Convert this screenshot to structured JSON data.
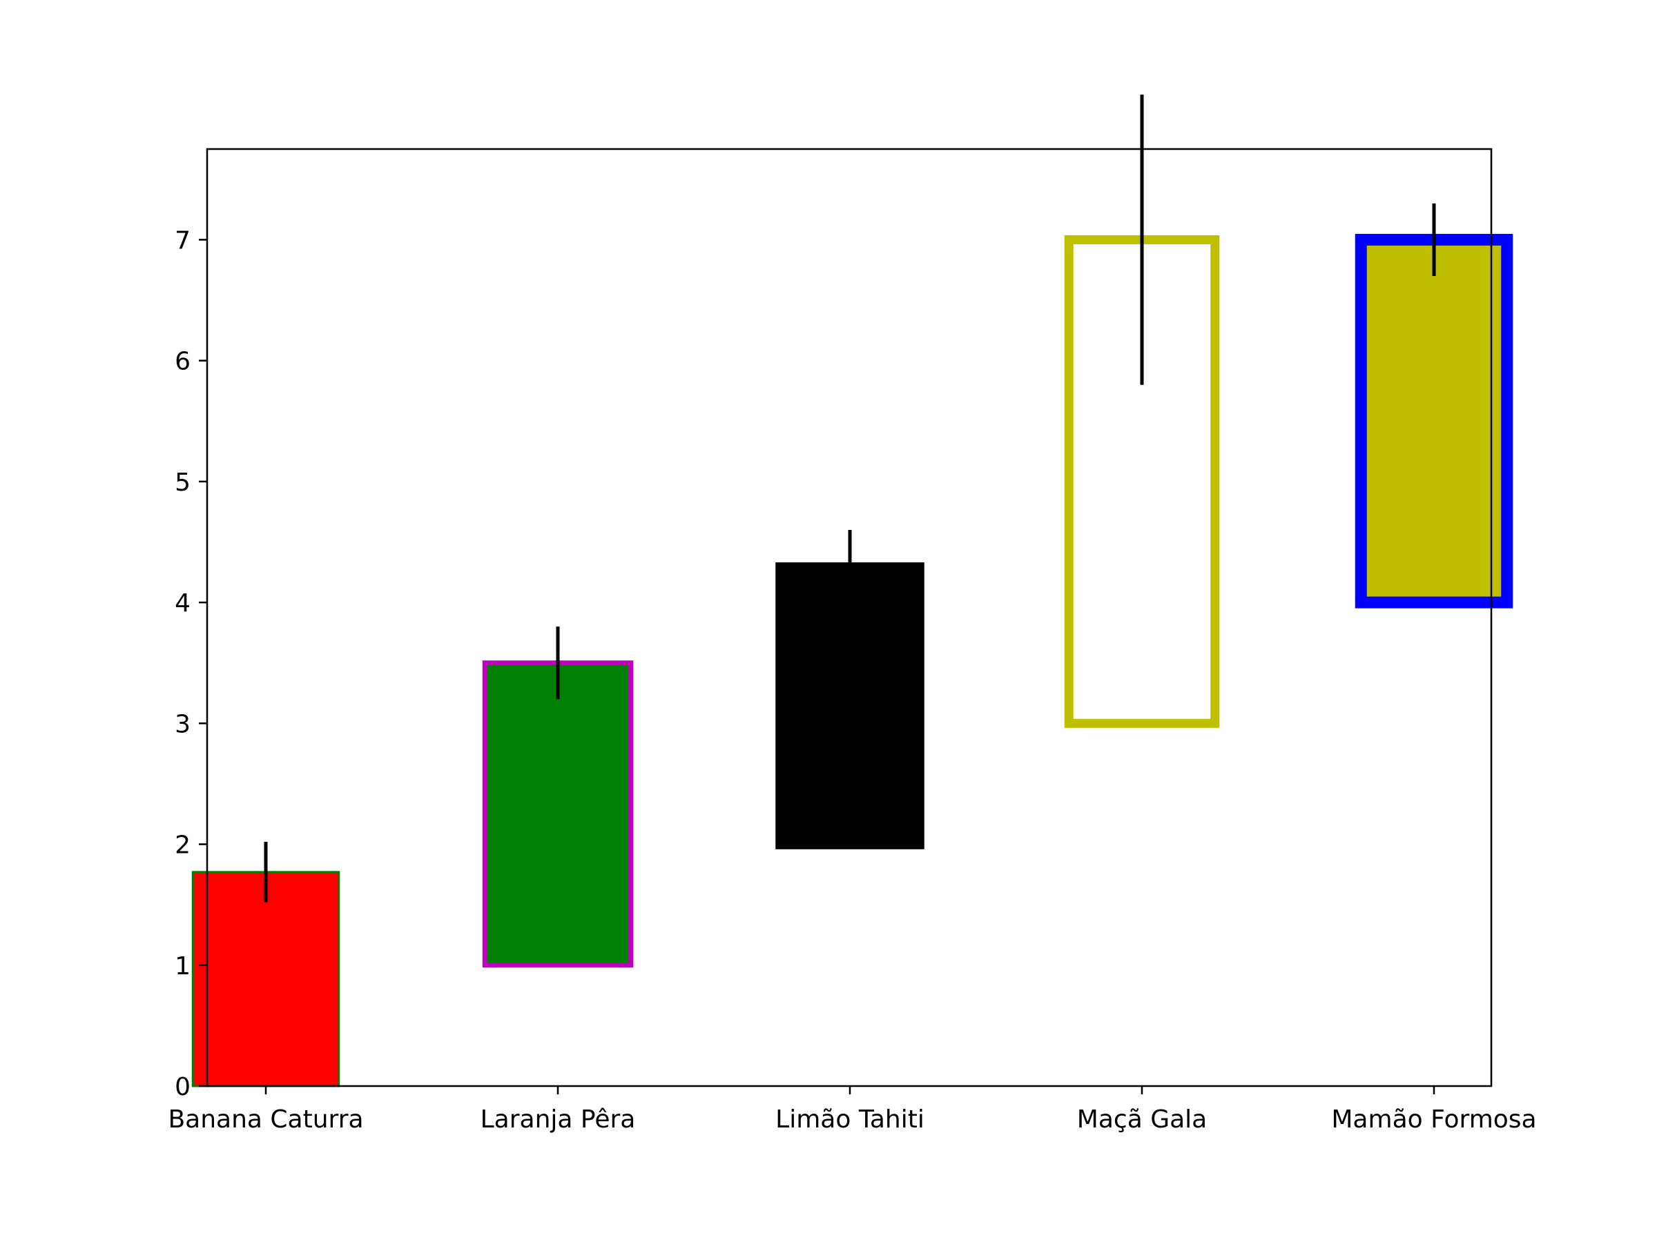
{
  "chart_data": {
    "type": "bar",
    "title": "",
    "xlabel": "",
    "ylabel": "",
    "ylim": [
      0,
      7.75
    ],
    "yticks": [
      0,
      1,
      2,
      3,
      4,
      5,
      6,
      7
    ],
    "categories": [
      "Banana Caturra",
      "Laranja Pêra",
      "Limão Tahiti",
      "Maçã Gala",
      "Mamão Formosa"
    ],
    "bars": [
      {
        "category": "Banana Caturra",
        "bottom": 0,
        "top": 1.77,
        "error": 0.25,
        "fill": "#ff0000",
        "edge": "#008000",
        "error_color": "#000000"
      },
      {
        "category": "Laranja Pêra",
        "bottom": 1.0,
        "top": 3.5,
        "error": 0.3,
        "fill": "#008000",
        "edge": "#bf00bf",
        "error_color": "#000000"
      },
      {
        "category": "Limão Tahiti",
        "bottom": 1.97,
        "top": 4.32,
        "error": 0.28,
        "fill": "#000000",
        "edge": "#000000",
        "error_color": "#000000"
      },
      {
        "category": "Maçã Gala",
        "bottom": 3.0,
        "top": 7.0,
        "error": 1.2,
        "fill": "none",
        "edge": "#bfbf00",
        "error_color": "#000000"
      },
      {
        "category": "Mamão Formosa",
        "bottom": 4.0,
        "top": 7.0,
        "error": 0.3,
        "fill": "#bfbf00",
        "edge": "#0000ff",
        "error_color": "#000000"
      }
    ],
    "grid": false,
    "legend": "none"
  }
}
